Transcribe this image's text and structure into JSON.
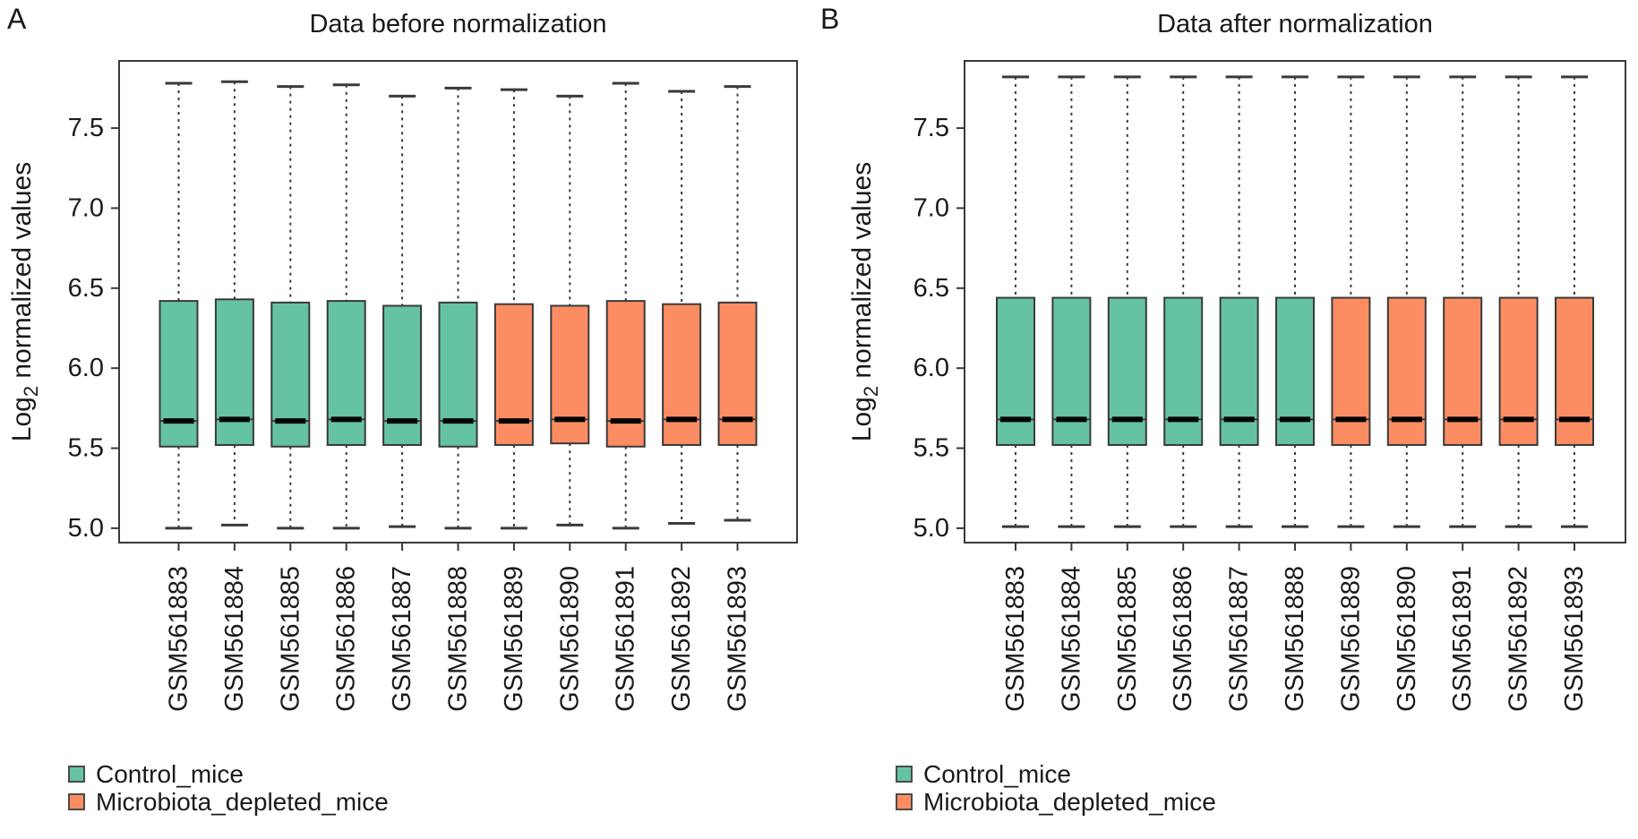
{
  "figure": {
    "background": "#ffffff",
    "panels": [
      {
        "letter": "A",
        "title": "Data before normalization"
      },
      {
        "letter": "B",
        "title": "Data after normalization"
      }
    ],
    "legend": {
      "items": [
        {
          "label": "Control_mice",
          "color": "#66C2A5"
        },
        {
          "label": "Microbiota_depleted_mice",
          "color": "#FC8D62"
        }
      ]
    }
  },
  "chart_data": [
    {
      "type": "boxplot",
      "panel": "A",
      "title": "Data before normalization",
      "ylabel": "Log2 normalized values",
      "ylabel_parts": {
        "pre": "Log",
        "sub": "2",
        "post": " normalized values"
      },
      "ylim": [
        4.91,
        7.92
      ],
      "yticks": [
        5.0,
        5.5,
        6.0,
        6.5,
        7.0,
        7.5
      ],
      "grid": false,
      "legend_position": "bottom-left",
      "colors": {
        "Control_mice": "#66C2A5",
        "Microbiota_depleted_mice": "#FC8D62"
      },
      "boxes": [
        {
          "sample": "GSM561883",
          "group": "Control_mice",
          "whisker_low": 5.0,
          "q1": 5.51,
          "median": 5.67,
          "q3": 6.42,
          "whisker_high": 7.78
        },
        {
          "sample": "GSM561884",
          "group": "Control_mice",
          "whisker_low": 5.02,
          "q1": 5.52,
          "median": 5.68,
          "q3": 6.43,
          "whisker_high": 7.79
        },
        {
          "sample": "GSM561885",
          "group": "Control_mice",
          "whisker_low": 5.0,
          "q1": 5.51,
          "median": 5.67,
          "q3": 6.41,
          "whisker_high": 7.76
        },
        {
          "sample": "GSM561886",
          "group": "Control_mice",
          "whisker_low": 5.0,
          "q1": 5.52,
          "median": 5.68,
          "q3": 6.42,
          "whisker_high": 7.77
        },
        {
          "sample": "GSM561887",
          "group": "Control_mice",
          "whisker_low": 5.01,
          "q1": 5.52,
          "median": 5.67,
          "q3": 6.39,
          "whisker_high": 7.7
        },
        {
          "sample": "GSM561888",
          "group": "Control_mice",
          "whisker_low": 5.0,
          "q1": 5.51,
          "median": 5.67,
          "q3": 6.41,
          "whisker_high": 7.75
        },
        {
          "sample": "GSM561889",
          "group": "Microbiota_depleted_mice",
          "whisker_low": 5.0,
          "q1": 5.52,
          "median": 5.67,
          "q3": 6.4,
          "whisker_high": 7.74
        },
        {
          "sample": "GSM561890",
          "group": "Microbiota_depleted_mice",
          "whisker_low": 5.02,
          "q1": 5.53,
          "median": 5.68,
          "q3": 6.39,
          "whisker_high": 7.7
        },
        {
          "sample": "GSM561891",
          "group": "Microbiota_depleted_mice",
          "whisker_low": 5.0,
          "q1": 5.51,
          "median": 5.67,
          "q3": 6.42,
          "whisker_high": 7.78
        },
        {
          "sample": "GSM561892",
          "group": "Microbiota_depleted_mice",
          "whisker_low": 5.03,
          "q1": 5.52,
          "median": 5.68,
          "q3": 6.4,
          "whisker_high": 7.73
        },
        {
          "sample": "GSM561893",
          "group": "Microbiota_depleted_mice",
          "whisker_low": 5.05,
          "q1": 5.52,
          "median": 5.68,
          "q3": 6.41,
          "whisker_high": 7.76
        }
      ]
    },
    {
      "type": "boxplot",
      "panel": "B",
      "title": "Data after normalization",
      "ylabel": "Log2 normalized values",
      "ylabel_parts": {
        "pre": "Log",
        "sub": "2",
        "post": " normalized values"
      },
      "ylim": [
        4.91,
        7.92
      ],
      "yticks": [
        5.0,
        5.5,
        6.0,
        6.5,
        7.0,
        7.5
      ],
      "grid": false,
      "legend_position": "bottom-left",
      "colors": {
        "Control_mice": "#66C2A5",
        "Microbiota_depleted_mice": "#FC8D62"
      },
      "boxes": [
        {
          "sample": "GSM561883",
          "group": "Control_mice",
          "whisker_low": 5.01,
          "q1": 5.52,
          "median": 5.68,
          "q3": 6.44,
          "whisker_high": 7.82
        },
        {
          "sample": "GSM561884",
          "group": "Control_mice",
          "whisker_low": 5.01,
          "q1": 5.52,
          "median": 5.68,
          "q3": 6.44,
          "whisker_high": 7.82
        },
        {
          "sample": "GSM561885",
          "group": "Control_mice",
          "whisker_low": 5.01,
          "q1": 5.52,
          "median": 5.68,
          "q3": 6.44,
          "whisker_high": 7.82
        },
        {
          "sample": "GSM561886",
          "group": "Control_mice",
          "whisker_low": 5.01,
          "q1": 5.52,
          "median": 5.68,
          "q3": 6.44,
          "whisker_high": 7.82
        },
        {
          "sample": "GSM561887",
          "group": "Control_mice",
          "whisker_low": 5.01,
          "q1": 5.52,
          "median": 5.68,
          "q3": 6.44,
          "whisker_high": 7.82
        },
        {
          "sample": "GSM561888",
          "group": "Control_mice",
          "whisker_low": 5.01,
          "q1": 5.52,
          "median": 5.68,
          "q3": 6.44,
          "whisker_high": 7.82
        },
        {
          "sample": "GSM561889",
          "group": "Microbiota_depleted_mice",
          "whisker_low": 5.01,
          "q1": 5.52,
          "median": 5.68,
          "q3": 6.44,
          "whisker_high": 7.82
        },
        {
          "sample": "GSM561890",
          "group": "Microbiota_depleted_mice",
          "whisker_low": 5.01,
          "q1": 5.52,
          "median": 5.68,
          "q3": 6.44,
          "whisker_high": 7.82
        },
        {
          "sample": "GSM561891",
          "group": "Microbiota_depleted_mice",
          "whisker_low": 5.01,
          "q1": 5.52,
          "median": 5.68,
          "q3": 6.44,
          "whisker_high": 7.82
        },
        {
          "sample": "GSM561892",
          "group": "Microbiota_depleted_mice",
          "whisker_low": 5.01,
          "q1": 5.52,
          "median": 5.68,
          "q3": 6.44,
          "whisker_high": 7.82
        },
        {
          "sample": "GSM561893",
          "group": "Microbiota_depleted_mice",
          "whisker_low": 5.01,
          "q1": 5.52,
          "median": 5.68,
          "q3": 6.44,
          "whisker_high": 7.82
        }
      ]
    }
  ]
}
